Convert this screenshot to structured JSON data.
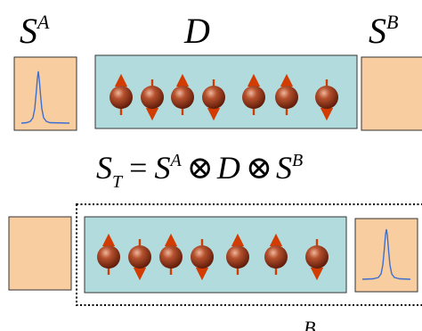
{
  "labels": {
    "sa_main": "S",
    "sa_sup": "A",
    "d_main": "D",
    "sb_main": "S",
    "sb_sup": "B",
    "eq_st": "S",
    "eq_st_sub": "T",
    "eq_eq": "=",
    "eq_sa": "S",
    "eq_sa_sup": "A",
    "eq_otimes1": "⊗",
    "eq_d": "D",
    "eq_otimes2": "⊗",
    "eq_sb": "S",
    "eq_sb_sup": "B",
    "bottom_sup": "B"
  },
  "colors": {
    "reservoir_fill": "#f8cd9f",
    "chain_fill": "#b1dbdd",
    "spin_body": "#8b2e16",
    "spin_arrow": "#d23c00",
    "peak_line": "#3d6fd0"
  },
  "top_spins": [
    "up",
    "down",
    "up",
    "down",
    "up",
    "up",
    "down"
  ],
  "bottom_spins": [
    "up",
    "down",
    "up",
    "down",
    "up",
    "up",
    "down"
  ]
}
